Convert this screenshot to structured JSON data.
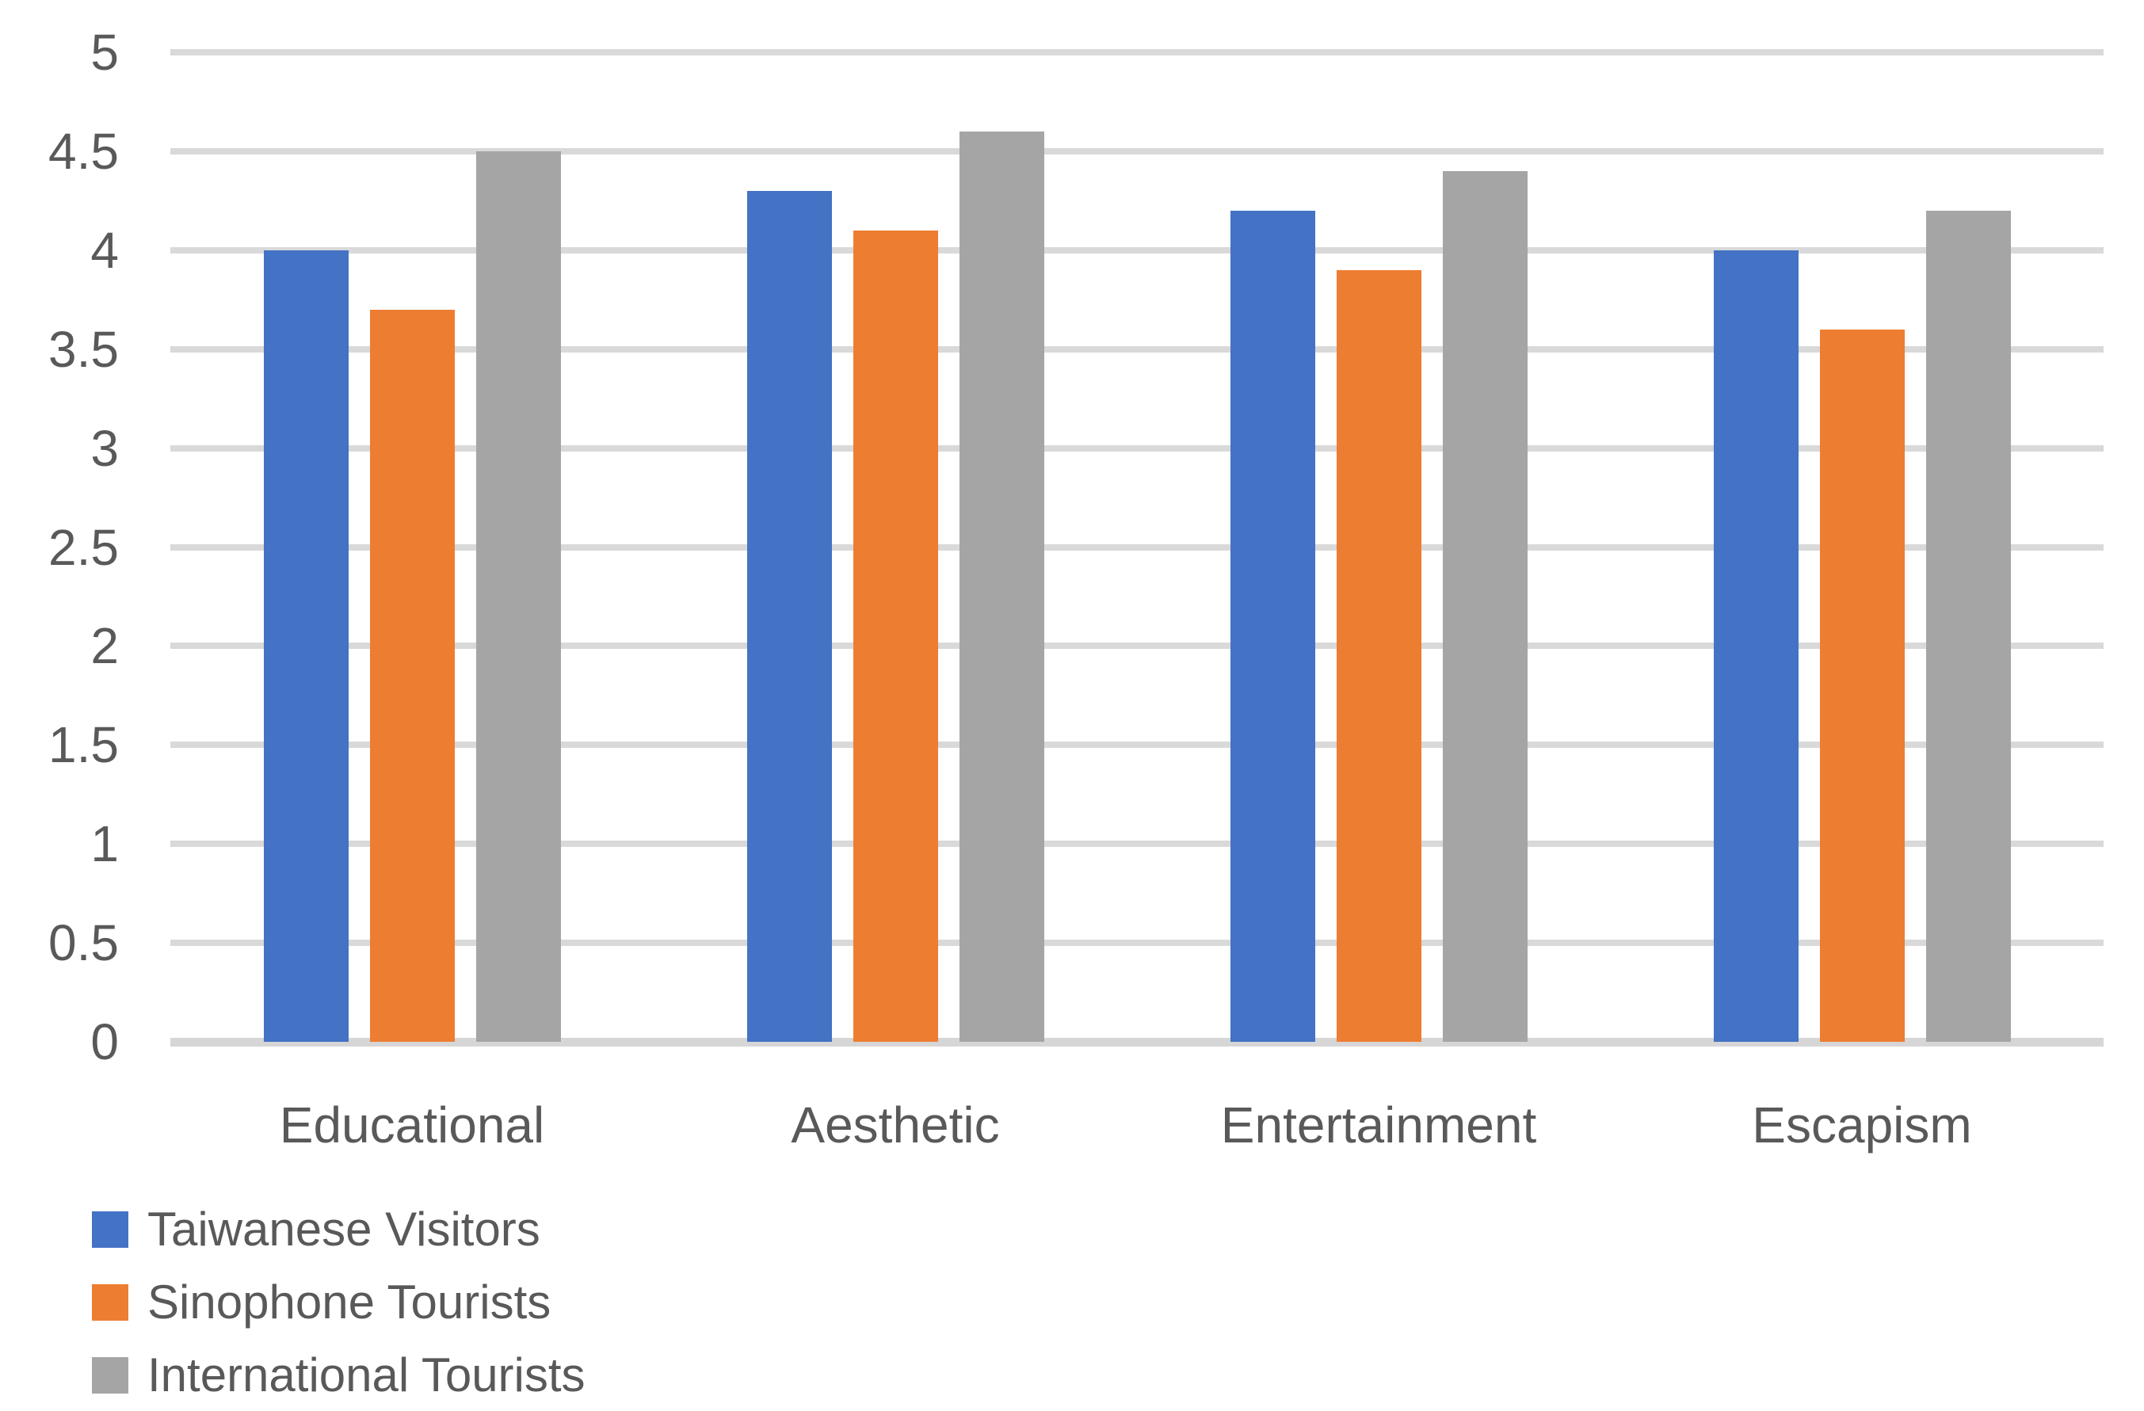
{
  "chart_data": {
    "type": "bar",
    "categories": [
      "Educational",
      "Aesthetic",
      "Entertainment",
      "Escapism"
    ],
    "series": [
      {
        "name": "Taiwanese Visitors",
        "color": "#4472C4",
        "values": [
          4.0,
          4.3,
          4.2,
          4.0
        ]
      },
      {
        "name": "Sinophone Tourists",
        "color": "#ED7D31",
        "values": [
          3.7,
          4.1,
          3.9,
          3.6
        ]
      },
      {
        "name": "International Tourists",
        "color": "#A5A5A5",
        "values": [
          4.5,
          4.6,
          4.4,
          4.2
        ]
      }
    ],
    "title": "",
    "xlabel": "",
    "ylabel": "",
    "ylim": [
      0,
      5
    ],
    "ytick_step": 0.5,
    "ytick_labels": [
      "0",
      "0.5",
      "1",
      "1.5",
      "2",
      "2.5",
      "3",
      "3.5",
      "4",
      "4.5",
      "5"
    ],
    "grid": true,
    "legend_position": "bottom-left"
  },
  "colors": {
    "gridline": "#D9D9D9",
    "axis_text": "#595959",
    "background": "#FFFFFF"
  }
}
